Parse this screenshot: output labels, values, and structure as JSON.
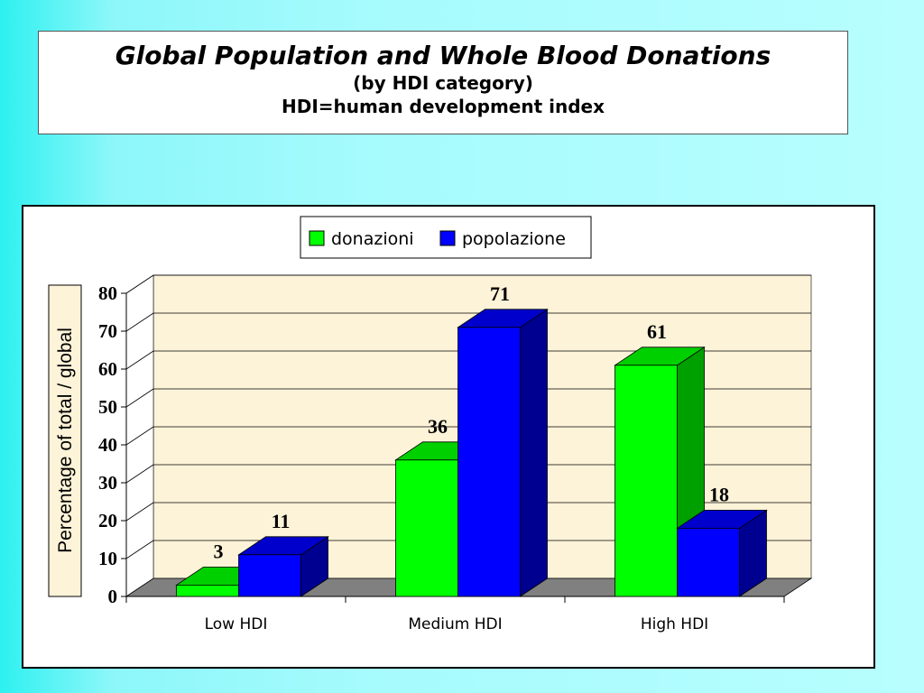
{
  "header": {
    "title": "Global Population and Whole Blood Donations",
    "subtitle1": "(by HDI category)",
    "subtitle2": "HDI=human development index"
  },
  "chart_data": {
    "type": "bar",
    "style": "3d-clustered",
    "categories": [
      "Low HDI",
      "Medium HDI",
      "High HDI"
    ],
    "series": [
      {
        "name": "donazioni",
        "values": [
          3,
          36,
          61
        ],
        "color": "#00ff00",
        "side_color": "#00a000",
        "top_color": "#00d000"
      },
      {
        "name": "popolazione",
        "values": [
          11,
          71,
          18
        ],
        "color": "#0000ff",
        "side_color": "#000090",
        "top_color": "#0000cc"
      }
    ],
    "ylabel": "Percentage  of total / global",
    "xlabel": "",
    "ylim": [
      0,
      80
    ],
    "yticks": [
      "0",
      "10",
      "20",
      "30",
      "40",
      "50",
      "60",
      "70",
      "80"
    ],
    "grid": true,
    "legend_position": "top-center",
    "wall_color": "#fdf3d8",
    "floor_color": "#808080"
  }
}
